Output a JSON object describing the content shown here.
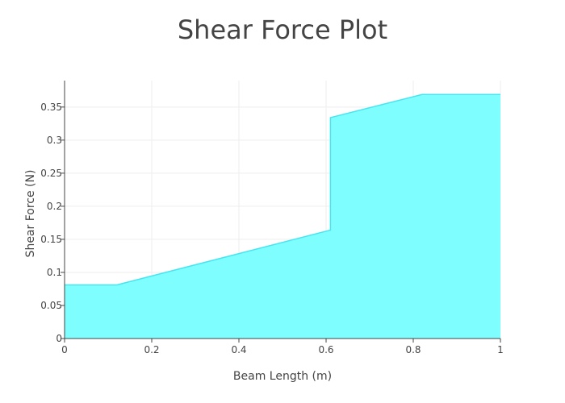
{
  "chart_data": {
    "type": "area",
    "title": "Shear Force Plot",
    "xlabel": "Beam Length (m)",
    "ylabel": "Shear Force (N)",
    "xlim": [
      0,
      1
    ],
    "ylim": [
      0,
      0.39
    ],
    "xticks": [
      0,
      0.2,
      0.4,
      0.6,
      0.8,
      1
    ],
    "xtick_labels": [
      "0",
      "0.2",
      "0.4",
      "0.6",
      "0.8",
      "1"
    ],
    "yticks": [
      0,
      0.05,
      0.1,
      0.15,
      0.2,
      0.25,
      0.3,
      0.35
    ],
    "ytick_labels": [
      "0",
      "0.05",
      "0.1",
      "0.15",
      "0.2",
      "0.25",
      "0.3",
      "0.35"
    ],
    "grid": true,
    "series": [
      {
        "x": [
          0,
          0.12,
          0.61,
          0.61,
          0.82,
          1.0
        ],
        "y": [
          0.081,
          0.081,
          0.164,
          0.334,
          0.369,
          0.369
        ]
      }
    ],
    "colors": {
      "fill": "#7ffeff",
      "line": "#46e5f0",
      "grid": "#eeeeee",
      "axis": "#444444"
    }
  }
}
